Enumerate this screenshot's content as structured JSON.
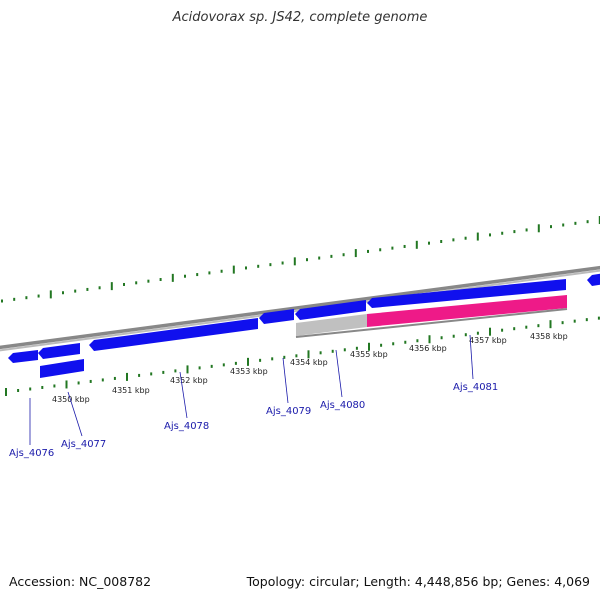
{
  "title": "Acidovorax sp. JS42, complete genome",
  "accession": "Accession: NC_008782",
  "summary": "Topology: circular; Length: 4,448,856 bp; Genes: 4,069",
  "colors": {
    "backbone": "#888888",
    "gene": "#1010ee",
    "highlight": "#ee1a88",
    "gray_feature": "#c0c0c0",
    "tick": "#227722",
    "label": "#1a1aaa"
  },
  "scale_labels": [
    "4350 kbp",
    "4351 kbp",
    "4352 kbp",
    "4353 kbp",
    "4354 kbp",
    "4355 kbp",
    "4356 kbp",
    "4357 kbp",
    "4358 kbp"
  ],
  "gene_labels": [
    "Ajs_4076",
    "Ajs_4077",
    "Ajs_4078",
    "Ajs_4079",
    "Ajs_4080",
    "Ajs_4081"
  ]
}
